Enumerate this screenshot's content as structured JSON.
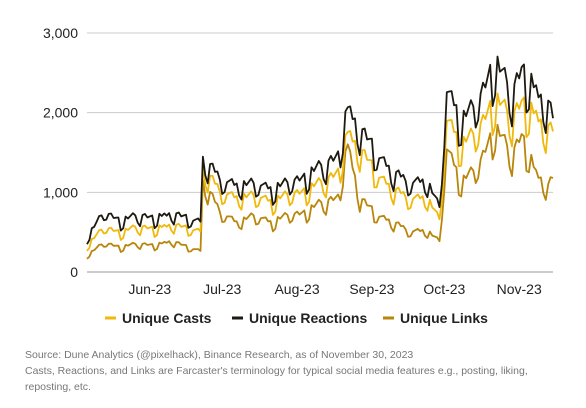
{
  "chart_data": {
    "type": "line",
    "ylim": [
      0,
      3000
    ],
    "yticks": [
      {
        "value": 0,
        "label": "0"
      },
      {
        "value": 1000,
        "label": "1,000"
      },
      {
        "value": 2000,
        "label": "2,000"
      },
      {
        "value": 3000,
        "label": "3,000"
      }
    ],
    "xlim": [
      "2023-05-20",
      "2023-11-29"
    ],
    "xticks": [
      {
        "date": "2023-06-15",
        "label": "Jun-23"
      },
      {
        "date": "2023-07-15",
        "label": "Jul-23"
      },
      {
        "date": "2023-08-15",
        "label": "Aug-23"
      },
      {
        "date": "2023-09-15",
        "label": "Sep-23"
      },
      {
        "date": "2023-10-15",
        "label": "Oct-23"
      },
      {
        "date": "2023-11-15",
        "label": "Nov-23"
      }
    ],
    "grid": true,
    "legend_position": "bottom",
    "series": [
      {
        "name": "Unique Casts",
        "color": "#F0B90B",
        "points": [
          [
            "2023-05-20",
            320
          ],
          [
            "2023-05-27",
            550
          ],
          [
            "2023-06-03",
            480
          ],
          [
            "2023-06-10",
            560
          ],
          [
            "2023-06-17",
            520
          ],
          [
            "2023-06-24",
            580
          ],
          [
            "2023-07-01",
            530
          ],
          [
            "2023-07-06",
            500
          ],
          [
            "2023-07-07",
            1250
          ],
          [
            "2023-07-14",
            1000
          ],
          [
            "2023-07-21",
            900
          ],
          [
            "2023-07-28",
            950
          ],
          [
            "2023-08-04",
            850
          ],
          [
            "2023-08-11",
            950
          ],
          [
            "2023-08-18",
            980
          ],
          [
            "2023-08-25",
            1100
          ],
          [
            "2023-09-01",
            1200
          ],
          [
            "2023-09-05",
            1700
          ],
          [
            "2023-09-10",
            1500
          ],
          [
            "2023-09-17",
            1200
          ],
          [
            "2023-09-24",
            1000
          ],
          [
            "2023-10-01",
            900
          ],
          [
            "2023-10-08",
            900
          ],
          [
            "2023-10-13",
            650
          ],
          [
            "2023-10-16",
            1850
          ],
          [
            "2023-10-22",
            1550
          ],
          [
            "2023-10-29",
            1750
          ],
          [
            "2023-11-05",
            2100
          ],
          [
            "2023-11-12",
            1900
          ],
          [
            "2023-11-16",
            2050
          ],
          [
            "2023-11-22",
            1900
          ],
          [
            "2023-11-27",
            1750
          ],
          [
            "2023-11-29",
            1720
          ]
        ]
      },
      {
        "name": "Unique Reactions",
        "color": "#1E1A12",
        "points": [
          [
            "2023-05-20",
            420
          ],
          [
            "2023-05-27",
            740
          ],
          [
            "2023-06-03",
            620
          ],
          [
            "2023-06-10",
            700
          ],
          [
            "2023-06-17",
            650
          ],
          [
            "2023-06-24",
            720
          ],
          [
            "2023-07-01",
            650
          ],
          [
            "2023-07-06",
            620
          ],
          [
            "2023-07-07",
            1380
          ],
          [
            "2023-07-14",
            1150
          ],
          [
            "2023-07-21",
            1050
          ],
          [
            "2023-07-28",
            1100
          ],
          [
            "2023-08-04",
            1000
          ],
          [
            "2023-08-11",
            1100
          ],
          [
            "2023-08-18",
            1150
          ],
          [
            "2023-08-25",
            1300
          ],
          [
            "2023-09-01",
            1400
          ],
          [
            "2023-09-05",
            2000
          ],
          [
            "2023-09-10",
            1750
          ],
          [
            "2023-09-17",
            1450
          ],
          [
            "2023-09-24",
            1200
          ],
          [
            "2023-10-01",
            1100
          ],
          [
            "2023-10-08",
            1100
          ],
          [
            "2023-10-13",
            800
          ],
          [
            "2023-10-16",
            2200
          ],
          [
            "2023-10-22",
            1850
          ],
          [
            "2023-10-29",
            2100
          ],
          [
            "2023-11-05",
            2550
          ],
          [
            "2023-11-12",
            2200
          ],
          [
            "2023-11-16",
            2450
          ],
          [
            "2023-11-22",
            2200
          ],
          [
            "2023-11-27",
            2050
          ],
          [
            "2023-11-29",
            1880
          ]
        ]
      },
      {
        "name": "Unique Links",
        "color": "#B8860B",
        "points": [
          [
            "2023-05-20",
            200
          ],
          [
            "2023-05-27",
            360
          ],
          [
            "2023-06-03",
            300
          ],
          [
            "2023-06-10",
            350
          ],
          [
            "2023-06-17",
            320
          ],
          [
            "2023-06-24",
            380
          ],
          [
            "2023-07-01",
            300
          ],
          [
            "2023-07-06",
            260
          ],
          [
            "2023-07-07",
            1100
          ],
          [
            "2023-07-14",
            750
          ],
          [
            "2023-07-21",
            600
          ],
          [
            "2023-07-28",
            700
          ],
          [
            "2023-08-04",
            600
          ],
          [
            "2023-08-11",
            700
          ],
          [
            "2023-08-18",
            720
          ],
          [
            "2023-08-25",
            850
          ],
          [
            "2023-09-01",
            900
          ],
          [
            "2023-09-05",
            1550
          ],
          [
            "2023-09-10",
            900
          ],
          [
            "2023-09-17",
            700
          ],
          [
            "2023-09-24",
            600
          ],
          [
            "2023-10-01",
            500
          ],
          [
            "2023-10-08",
            500
          ],
          [
            "2023-10-13",
            380
          ],
          [
            "2023-10-16",
            1500
          ],
          [
            "2023-10-22",
            1100
          ],
          [
            "2023-10-29",
            1300
          ],
          [
            "2023-11-05",
            1750
          ],
          [
            "2023-11-12",
            1450
          ],
          [
            "2023-11-16",
            1650
          ],
          [
            "2023-11-22",
            1200
          ],
          [
            "2023-11-27",
            1050
          ],
          [
            "2023-11-29",
            1150
          ]
        ]
      }
    ]
  },
  "source_text": {
    "line1": "Source: Dune Analytics (@pixelhack), Binance Research, as of November 30, 2023",
    "line2": "Casts, Reactions, and Links are Farcaster's terminology for typical social media features e.g., posting, liking,",
    "line3": "reposting, etc."
  }
}
